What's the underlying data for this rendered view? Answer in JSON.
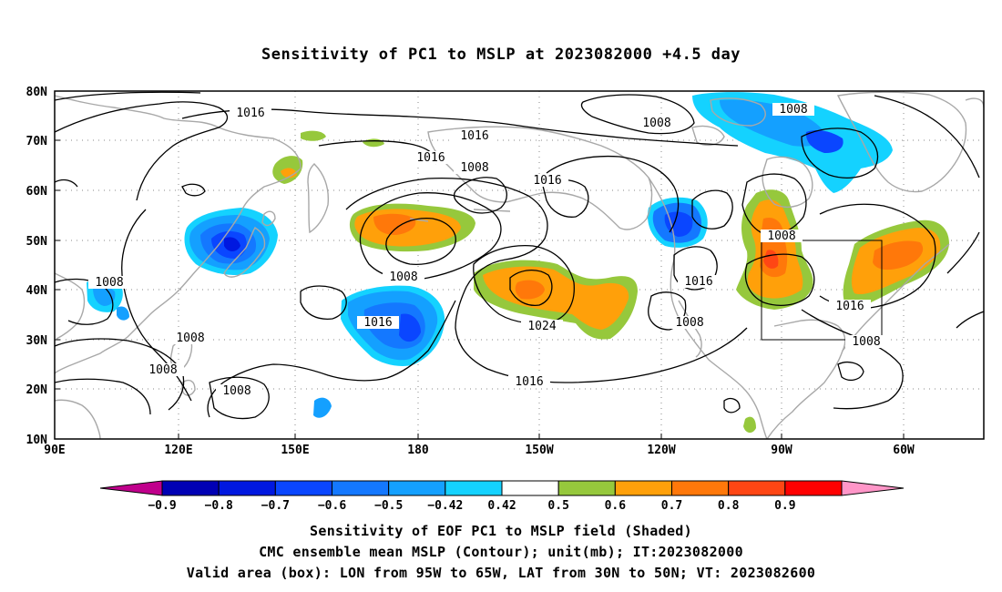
{
  "title": "Sensitivity of PC1 to MSLP at 2023082000 +4.5 day",
  "lat_labels": [
    "80N",
    "70N",
    "60N",
    "50N",
    "40N",
    "30N",
    "20N",
    "10N"
  ],
  "lon_labels": [
    "90E",
    "120E",
    "150E",
    "180",
    "150W",
    "120W",
    "90W",
    "60W"
  ],
  "contour_labels": [
    {
      "text": "1016",
      "region": "north-pacific-west"
    },
    {
      "text": "1016",
      "region": "arctic-central"
    },
    {
      "text": "1016",
      "region": "bering"
    },
    {
      "text": "1008",
      "region": "bering-low"
    },
    {
      "text": "1008",
      "region": "arctic-east"
    },
    {
      "text": "1016",
      "region": "gulf-of-alaska"
    },
    {
      "text": "1008",
      "region": "hudson-bay"
    },
    {
      "text": "1008",
      "region": "south-china"
    },
    {
      "text": "1008",
      "region": "aleutian"
    },
    {
      "text": "1016",
      "region": "central-pacific"
    },
    {
      "text": "1024",
      "region": "pacific-high"
    },
    {
      "text": "1016",
      "region": "rockies"
    },
    {
      "text": "1008",
      "region": "southwest-us"
    },
    {
      "text": "1016",
      "region": "subtropical-pacific"
    },
    {
      "text": "1016",
      "region": "east-coast"
    },
    {
      "text": "1008",
      "region": "atlantic"
    },
    {
      "text": "1008",
      "region": "philippine-sea"
    },
    {
      "text": "1008",
      "region": "south-china-sea"
    },
    {
      "text": "1008",
      "region": "western-pacific"
    }
  ],
  "colorbar": {
    "labels": [
      "−0.9",
      "−0.8",
      "−0.7",
      "−0.6",
      "−0.5",
      "−0.42",
      "0.42",
      "0.5",
      "0.6",
      "0.7",
      "0.8",
      "0.9"
    ],
    "colors": [
      "#c0008c",
      "#0000b4",
      "#0018e0",
      "#0a46ff",
      "#1478ff",
      "#14a0ff",
      "#14d2ff",
      "#ffffff",
      "#96c83c",
      "#ffa00a",
      "#ff780a",
      "#ff4614",
      "#ff0000",
      "#ff96c8"
    ]
  },
  "caption": {
    "line1": "Sensitivity of EOF PC1 to MSLP field (Shaded)",
    "line2": "CMC ensemble mean MSLP (Contour); unit(mb); IT:2023082000",
    "line3": "Valid area (box): LON from 95W to 65W, LAT from 30N to 50N; VT: 2023082600"
  },
  "valid_box": {
    "lon_west": "95W",
    "lon_east": "65W",
    "lat_south": "30N",
    "lat_north": "50N"
  }
}
